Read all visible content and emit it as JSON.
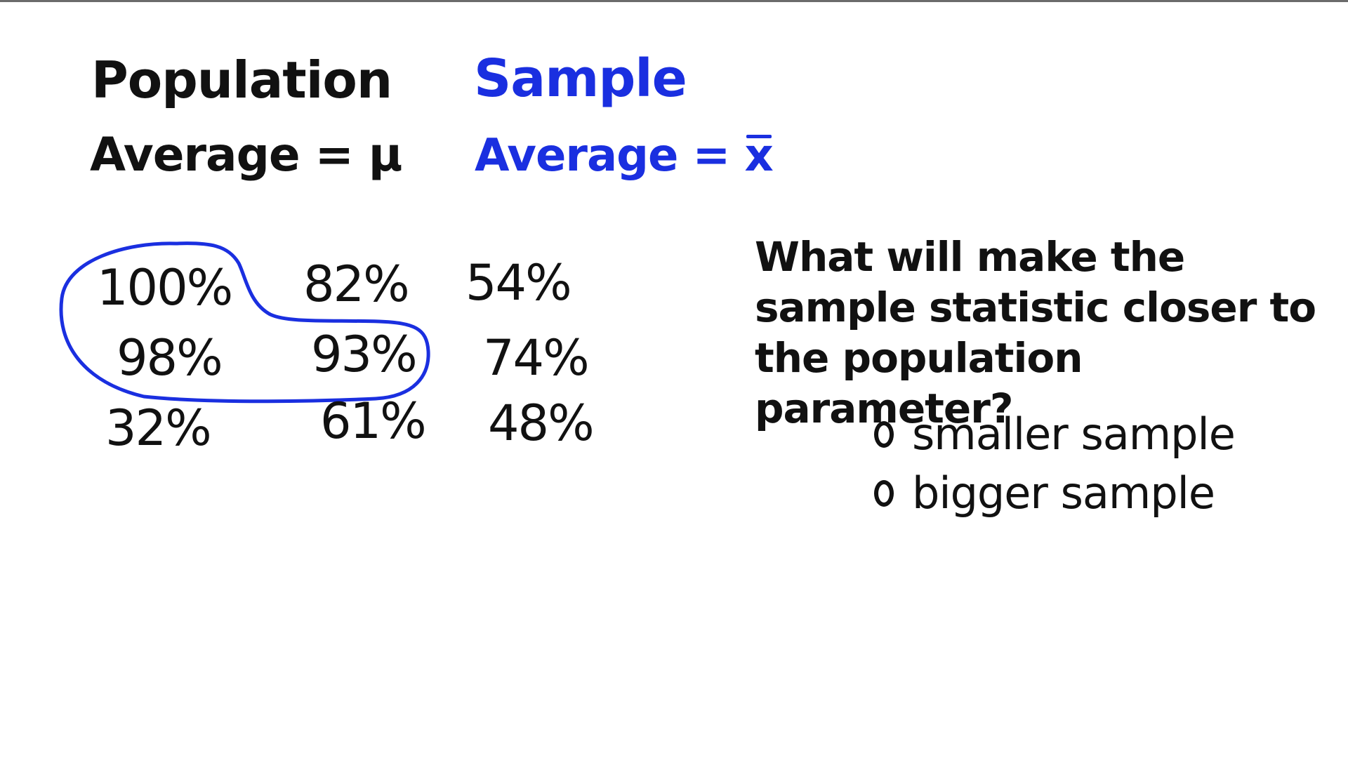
{
  "population": {
    "heading": "Population",
    "average_label": "Average = μ"
  },
  "sample": {
    "heading": "Sample",
    "average_label": "Average = ",
    "average_symbol": "x"
  },
  "grid": {
    "values": [
      "100%",
      "82%",
      "54%",
      "98%",
      "93%",
      "74%",
      "32%",
      "61%",
      "48%"
    ]
  },
  "question": {
    "text": "What will make the sample statistic closer to the population parameter?",
    "options": [
      "smaller sample",
      "bigger sample"
    ]
  },
  "colors": {
    "ink": "#111111",
    "blue": "#1a2fe0"
  }
}
